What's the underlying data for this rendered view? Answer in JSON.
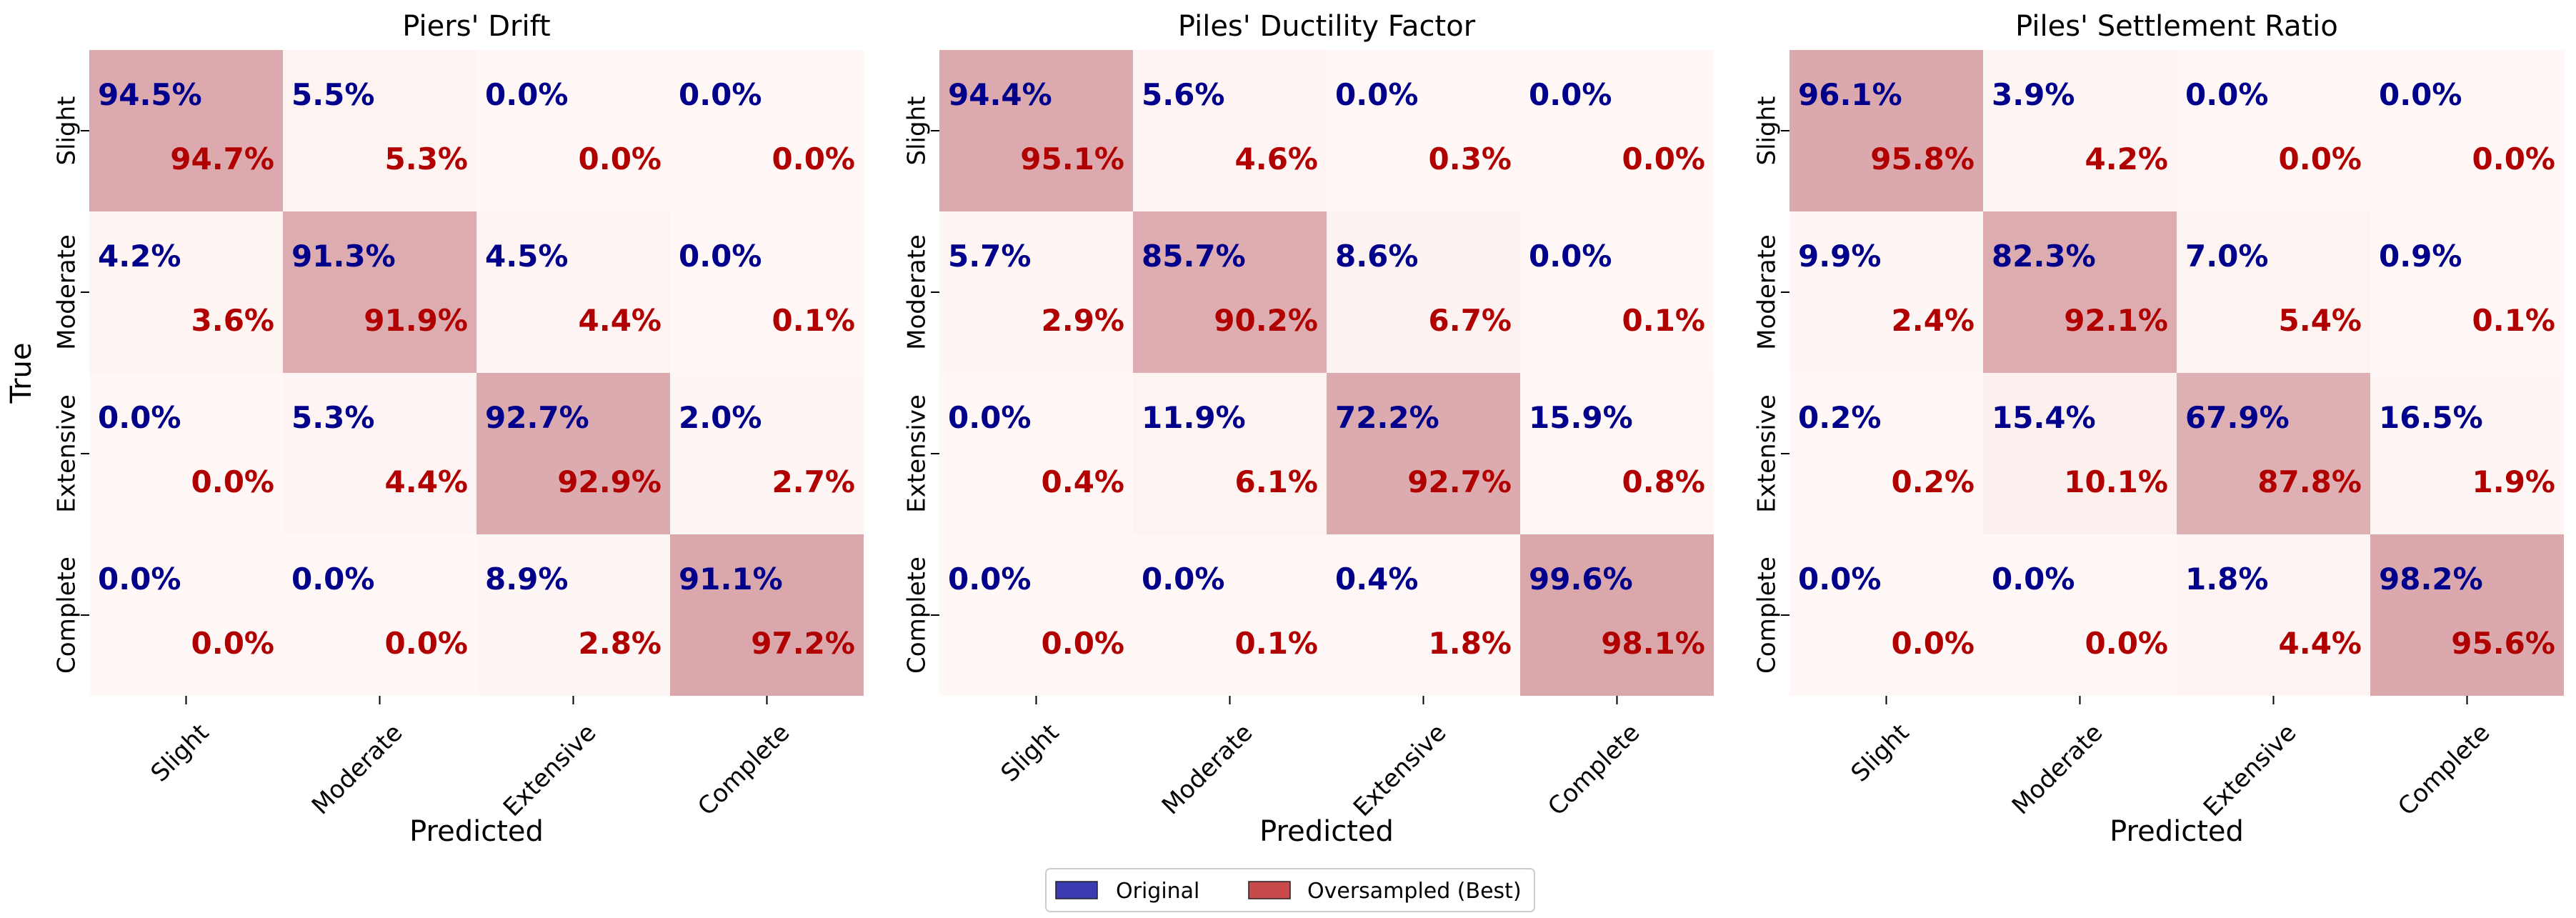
{
  "chart_data": [
    {
      "type": "heatmap",
      "title": "Piers' Drift",
      "xlabel": "Predicted",
      "ylabel": "True",
      "categories": [
        "Slight",
        "Moderate",
        "Extensive",
        "Complete"
      ],
      "series": [
        {
          "name": "Original",
          "values": [
            [
              94.5,
              5.5,
              0.0,
              0.0
            ],
            [
              4.2,
              91.3,
              4.5,
              0.0
            ],
            [
              0.0,
              5.3,
              92.7,
              2.0
            ],
            [
              0.0,
              0.0,
              8.9,
              91.1
            ]
          ]
        },
        {
          "name": "Oversampled (Best)",
          "values": [
            [
              94.7,
              5.3,
              0.0,
              0.0
            ],
            [
              3.6,
              91.9,
              4.4,
              0.1
            ],
            [
              0.0,
              4.4,
              92.9,
              2.7
            ],
            [
              0.0,
              0.0,
              2.8,
              97.2
            ]
          ]
        }
      ]
    },
    {
      "type": "heatmap",
      "title": "Piles' Ductility Factor",
      "xlabel": "Predicted",
      "ylabel": "",
      "categories": [
        "Slight",
        "Moderate",
        "Extensive",
        "Complete"
      ],
      "series": [
        {
          "name": "Original",
          "values": [
            [
              94.4,
              5.6,
              0.0,
              0.0
            ],
            [
              5.7,
              85.7,
              8.6,
              0.0
            ],
            [
              0.0,
              11.9,
              72.2,
              15.9
            ],
            [
              0.0,
              0.0,
              0.4,
              99.6
            ]
          ]
        },
        {
          "name": "Oversampled (Best)",
          "values": [
            [
              95.1,
              4.6,
              0.3,
              0.0
            ],
            [
              2.9,
              90.2,
              6.7,
              0.1
            ],
            [
              0.4,
              6.1,
              92.7,
              0.8
            ],
            [
              0.0,
              0.1,
              1.8,
              98.1
            ]
          ]
        }
      ]
    },
    {
      "type": "heatmap",
      "title": "Piles' Settlement Ratio",
      "xlabel": "Predicted",
      "ylabel": "",
      "categories": [
        "Slight",
        "Moderate",
        "Extensive",
        "Complete"
      ],
      "series": [
        {
          "name": "Original",
          "values": [
            [
              96.1,
              3.9,
              0.0,
              0.0
            ],
            [
              9.9,
              82.3,
              7.0,
              0.9
            ],
            [
              0.2,
              15.4,
              67.9,
              16.5
            ],
            [
              0.0,
              0.0,
              1.8,
              98.2
            ]
          ]
        },
        {
          "name": "Oversampled (Best)",
          "values": [
            [
              95.8,
              4.2,
              0.0,
              0.0
            ],
            [
              2.4,
              92.1,
              5.4,
              0.1
            ],
            [
              0.2,
              10.1,
              87.8,
              1.9
            ],
            [
              0.0,
              0.0,
              4.4,
              95.6
            ]
          ]
        }
      ]
    }
  ],
  "legend": {
    "position": "bottom-center",
    "items": [
      {
        "label": "Original",
        "color": "#3b3bb0"
      },
      {
        "label": "Oversampled (Best)",
        "color": "#c94a4a"
      }
    ]
  },
  "colors": {
    "original_text": "#00008b",
    "oversampled_text": "#b00000",
    "cell_low": "#fff8f6",
    "cell_high": "#d9a5aa"
  }
}
